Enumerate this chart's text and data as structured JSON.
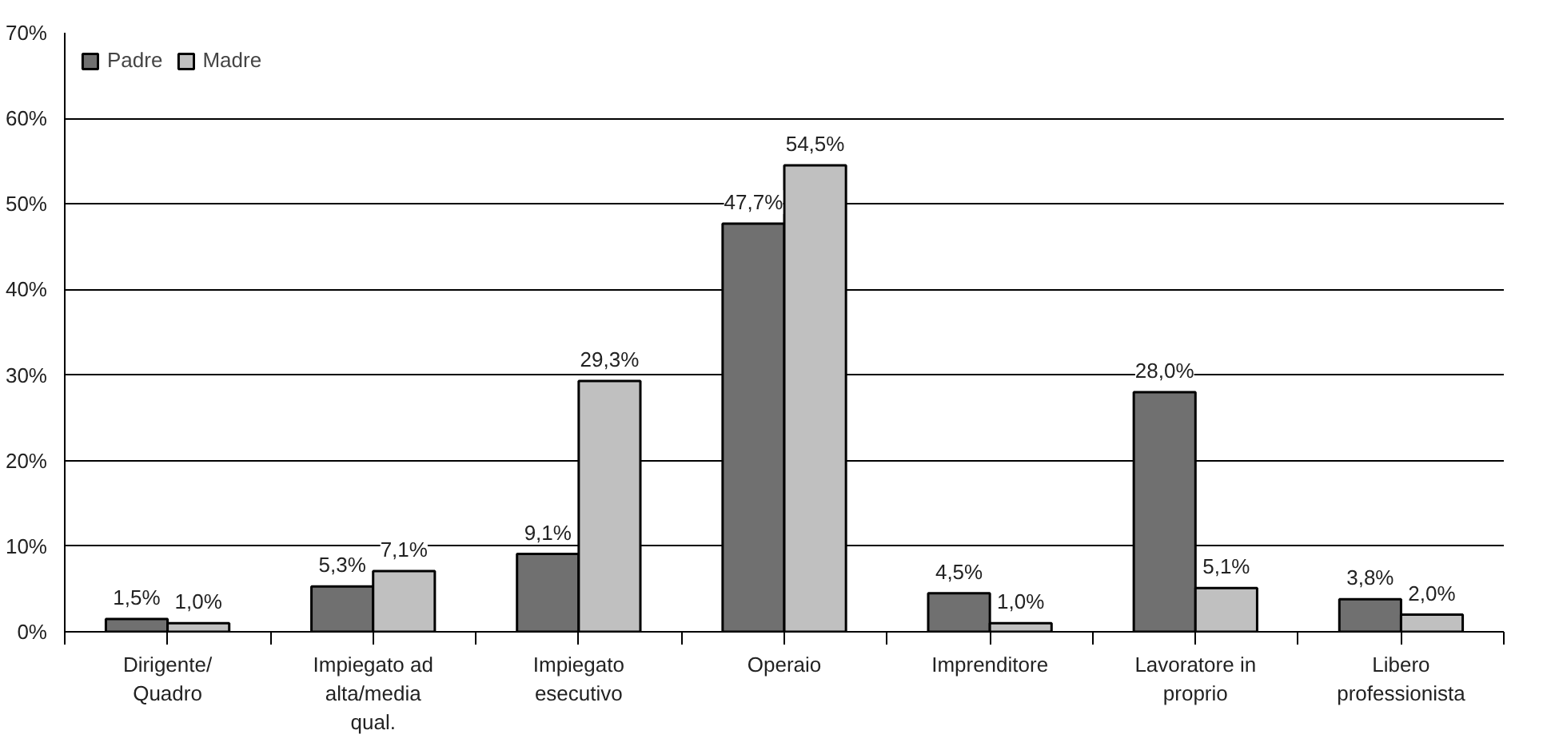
{
  "chart_data": {
    "type": "bar",
    "categories": [
      "Dirigente/ Quadro",
      "Impiegato ad alta/media qual.",
      "Impiegato esecutivo",
      "Operaio",
      "Imprenditore",
      "Lavoratore in proprio",
      "Libero professionista"
    ],
    "series": [
      {
        "name": "Padre",
        "color": "#707070",
        "values": [
          1.5,
          5.3,
          9.1,
          47.7,
          4.5,
          28.0,
          3.8
        ],
        "value_labels": [
          "1,5%",
          "5,3%",
          "9,1%",
          "47,7%",
          "4,5%",
          "28,0%",
          "3,8%"
        ]
      },
      {
        "name": "Madre",
        "color": "#c0c0c0",
        "values": [
          1.0,
          7.1,
          29.3,
          54.5,
          1.0,
          5.1,
          2.0
        ],
        "value_labels": [
          "1,0%",
          "7,1%",
          "29,3%",
          "54,5%",
          "1,0%",
          "5,1%",
          "2,0%"
        ]
      }
    ],
    "ylim": [
      0,
      70
    ],
    "yticks": [
      {
        "value": 0,
        "label": "0%"
      },
      {
        "value": 10,
        "label": "10%"
      },
      {
        "value": 20,
        "label": "20%"
      },
      {
        "value": 30,
        "label": "30%"
      },
      {
        "value": 40,
        "label": "40%"
      },
      {
        "value": 50,
        "label": "50%"
      },
      {
        "value": 60,
        "label": "60%"
      },
      {
        "value": 70,
        "label": "70%"
      }
    ],
    "grid": "y",
    "legend": "top left"
  }
}
